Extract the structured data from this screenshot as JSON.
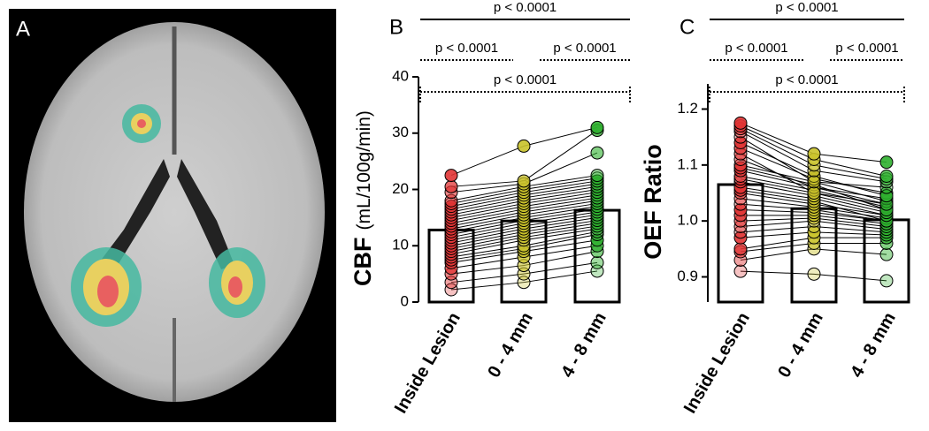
{
  "panel_a": {
    "label": "A"
  },
  "chart_data": [
    {
      "type": "bar",
      "panel": "B",
      "ylabel": "CBF",
      "ylabel_unit": "(mL/100g/min)",
      "categories": [
        "Inside Lesion",
        "0 - 4 mm",
        "4 - 8 mm"
      ],
      "values": [
        12.8,
        14.4,
        16.3
      ],
      "colors": [
        "#e03434",
        "#c9c22a",
        "#2fb02f"
      ],
      "points": [
        [
          2.2,
          3.5,
          5,
          6,
          7,
          7.5,
          8,
          8.5,
          9,
          9.5,
          10,
          10.5,
          11,
          11.5,
          12,
          12.5,
          13,
          13.5,
          14,
          14.5,
          15,
          15.5,
          16,
          16.5,
          17,
          17.5,
          18,
          19.5,
          20.5,
          22.5
        ],
        [
          3.5,
          5,
          6.5,
          8,
          9,
          9.5,
          10,
          11,
          11.5,
          12,
          12.5,
          13,
          13.5,
          14,
          14.5,
          15,
          15.5,
          16,
          16.5,
          17,
          17.5,
          18,
          18.5,
          19,
          19.5,
          20,
          20.5,
          21,
          21.5,
          27.7
        ],
        [
          5.5,
          7,
          9,
          10,
          11,
          12,
          12.5,
          13,
          13.5,
          14,
          14.5,
          15,
          15.5,
          16,
          16.5,
          17,
          17.5,
          18,
          18.5,
          19,
          19.5,
          20,
          20.5,
          21,
          21.5,
          22,
          22.5,
          26.5,
          30.5,
          31
        ]
      ],
      "ylim": [
        0,
        40
      ],
      "yticks": [
        0,
        10,
        20,
        30,
        40
      ],
      "annotations": [
        {
          "text": "p < 0.0001",
          "from": 0,
          "to": 2,
          "style": "solid"
        },
        {
          "text": "p < 0.0001",
          "from": 0,
          "to": 1,
          "style": "dotted"
        },
        {
          "text": "p < 0.0001",
          "from": 1,
          "to": 2,
          "style": "dotted"
        },
        {
          "text": "p < 0.0001",
          "from": 0,
          "to": 2,
          "style": "dotted"
        }
      ]
    },
    {
      "type": "bar",
      "panel": "C",
      "ylabel": "OEF Ratio",
      "categories": [
        "Inside Lesion",
        "0 - 4 mm",
        "4 - 8 mm"
      ],
      "values": [
        1.065,
        1.022,
        1.002
      ],
      "colors": [
        "#e03434",
        "#c9c22a",
        "#2fb02f"
      ],
      "points": [
        [
          0.91,
          0.93,
          0.945,
          0.95,
          0.97,
          0.98,
          0.99,
          1.0,
          1.01,
          1.02,
          1.03,
          1.04,
          1.05,
          1.055,
          1.06,
          1.07,
          1.075,
          1.08,
          1.09,
          1.095,
          1.1,
          1.11,
          1.12,
          1.13,
          1.14,
          1.15,
          1.16,
          1.165,
          1.17,
          1.175
        ],
        [
          0.905,
          0.95,
          0.96,
          0.97,
          0.98,
          0.99,
          1.0,
          1.005,
          1.01,
          1.015,
          1.02,
          1.025,
          1.03,
          1.035,
          1.04,
          1.045,
          1.05,
          1.055,
          1.06,
          1.065,
          1.07,
          1.06,
          1.05,
          1.075,
          1.08,
          1.07,
          1.09,
          1.1,
          1.11,
          1.12
        ],
        [
          0.893,
          0.94,
          0.96,
          0.97,
          0.975,
          0.98,
          0.985,
          0.99,
          0.995,
          1.0,
          1.0,
          1.005,
          1.01,
          1.0,
          1.01,
          1.015,
          1.02,
          1.025,
          1.03,
          1.02,
          1.035,
          1.04,
          1.03,
          1.05,
          1.045,
          1.06,
          1.07,
          1.075,
          1.08,
          1.105
        ]
      ],
      "ylim": [
        0.855,
        1.245
      ],
      "yticks": [
        0.9,
        {
          "value": 1,
          "label": "1.0"
        },
        1.1,
        1.2
      ],
      "annotations": [
        {
          "text": "p < 0.0001",
          "from": 0,
          "to": 2,
          "style": "solid"
        },
        {
          "text": "p < 0.0001",
          "from": 0,
          "to": 1,
          "style": "dotted"
        },
        {
          "text": "p < 0.0001",
          "from": 1,
          "to": 2,
          "style": "dotted"
        },
        {
          "text": "p < 0.0001",
          "from": 0,
          "to": 2,
          "style": "dotted"
        }
      ]
    }
  ]
}
